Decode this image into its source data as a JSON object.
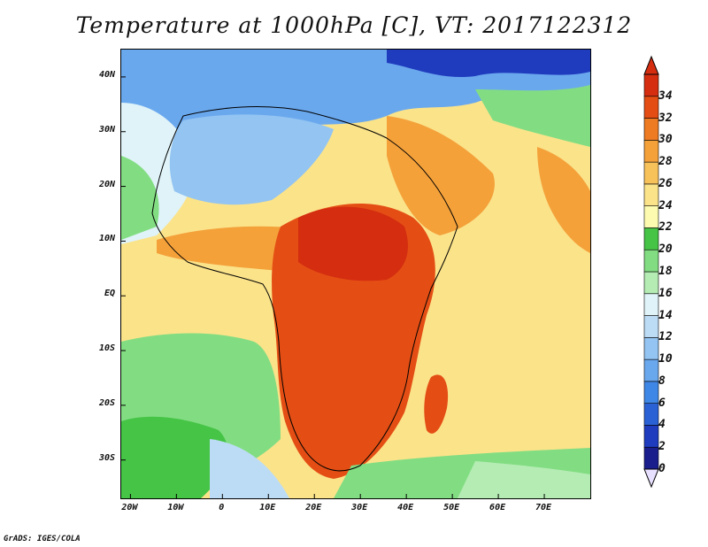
{
  "title": "Temperature at 1000hPa [C], VT: 2017122312",
  "credit": "GrADS: IGES/COLA",
  "map": {
    "lon_range": [
      -22,
      80
    ],
    "lat_range": [
      -37,
      45
    ],
    "lat_ticks": [
      {
        "value": 40,
        "label": "40N"
      },
      {
        "value": 30,
        "label": "30N"
      },
      {
        "value": 20,
        "label": "20N"
      },
      {
        "value": 10,
        "label": "10N"
      },
      {
        "value": 0,
        "label": "EQ"
      },
      {
        "value": -10,
        "label": "10S"
      },
      {
        "value": -20,
        "label": "20S"
      },
      {
        "value": -30,
        "label": "30S"
      }
    ],
    "lon_ticks": [
      {
        "value": -20,
        "label": "20W"
      },
      {
        "value": -10,
        "label": "10W"
      },
      {
        "value": 0,
        "label": "0"
      },
      {
        "value": 10,
        "label": "10E"
      },
      {
        "value": 20,
        "label": "20E"
      },
      {
        "value": 30,
        "label": "30E"
      },
      {
        "value": 40,
        "label": "40E"
      },
      {
        "value": 50,
        "label": "50E"
      },
      {
        "value": 60,
        "label": "60E"
      },
      {
        "value": 70,
        "label": "70E"
      }
    ]
  },
  "colorbar": {
    "levels": [
      "0",
      "2",
      "4",
      "6",
      "8",
      "10",
      "12",
      "14",
      "16",
      "18",
      "20",
      "22",
      "24",
      "26",
      "28",
      "30",
      "32",
      "34"
    ],
    "colors": [
      "#1a1e8c",
      "#1f3cbe",
      "#2a62d6",
      "#3f87e6",
      "#6aa8ee",
      "#93c4f2",
      "#bcdcf5",
      "#dff3f8",
      "#b4ecb4",
      "#82dd82",
      "#45c446",
      "#fdfbb0",
      "#fbe38a",
      "#f8c25b",
      "#f4a13a",
      "#ee7a22",
      "#e44e14",
      "#d42d10"
    ],
    "top_arrow_color": "#d42d10",
    "bottom_arrow_color": "#e8e0ff"
  }
}
